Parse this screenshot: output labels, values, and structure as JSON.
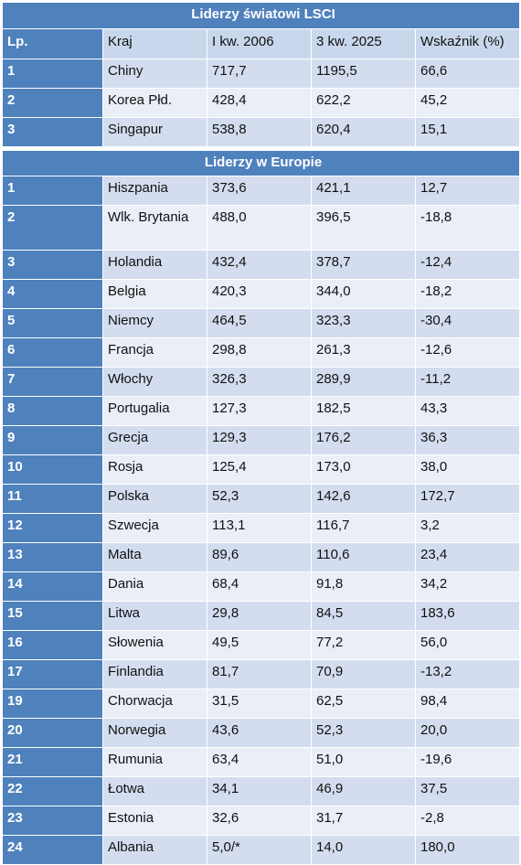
{
  "world": {
    "title": "Liderzy światowi LSCI",
    "headers": [
      "Lp.",
      "Kraj",
      "I kw. 2006",
      "3 kw. 2025",
      "Wskaźnik (%)"
    ],
    "rows": [
      [
        "1",
        "Chiny",
        "717,7",
        "1195,5",
        "66,6"
      ],
      [
        "2",
        "Korea Płd.",
        "428,4",
        "622,2",
        "45,2"
      ],
      [
        "3",
        "Singapur",
        "538,8",
        "620,4",
        "15,1"
      ]
    ]
  },
  "europe": {
    "title": "Liderzy w Europie",
    "rows": [
      [
        "1",
        "Hiszpania",
        "373,6",
        "421,1",
        "12,7"
      ],
      [
        "2",
        "Wlk. Brytania",
        "488,0",
        "396,5",
        "-18,8"
      ],
      [
        "3",
        "Holandia",
        "432,4",
        "378,7",
        "-12,4"
      ],
      [
        "4",
        "Belgia",
        "420,3",
        "344,0",
        "-18,2"
      ],
      [
        "5",
        "Niemcy",
        "464,5",
        "323,3",
        "-30,4"
      ],
      [
        "6",
        "Francja",
        "298,8",
        "261,3",
        "-12,6"
      ],
      [
        "7",
        "Włochy",
        "326,3",
        "289,9",
        "-11,2"
      ],
      [
        "8",
        "Portugalia",
        "127,3",
        "182,5",
        "43,3"
      ],
      [
        "9",
        "Grecja",
        "129,3",
        "176,2",
        "36,3"
      ],
      [
        "10",
        "Rosja",
        "125,4",
        "173,0",
        "38,0"
      ],
      [
        "11",
        "Polska",
        "52,3",
        "142,6",
        "172,7"
      ],
      [
        "12",
        "Szwecja",
        "113,1",
        "116,7",
        "3,2"
      ],
      [
        "13",
        "Malta",
        "89,6",
        "110,6",
        "23,4"
      ],
      [
        "14",
        "Dania",
        "68,4",
        "91,8",
        "34,2"
      ],
      [
        "15",
        "Litwa",
        "29,8",
        "84,5",
        "183,6"
      ],
      [
        "16",
        "Słowenia",
        "49,5",
        "77,2",
        "56,0"
      ],
      [
        "17",
        "Finlandia",
        "81,7",
        "70,9",
        "-13,2"
      ],
      [
        "19",
        "Chorwacja",
        "31,5",
        "62,5",
        "98,4"
      ],
      [
        "20",
        "Norwegia",
        "43,6",
        "52,3",
        "20,0"
      ],
      [
        "21",
        "Rumunia",
        "63,4",
        "51,0",
        "-19,6"
      ],
      [
        "22",
        "Łotwa",
        "34,1",
        "46,9",
        "37,5"
      ],
      [
        "23",
        "Estonia",
        "32,6",
        "31,7",
        "-2,8"
      ],
      [
        "24",
        "Albania",
        "5,0/*",
        "14,0",
        "180,0"
      ]
    ]
  },
  "colors": {
    "header_blue": "#4f81bd",
    "row_dark": "#d3ddef",
    "row_light": "#e9eef7",
    "header_light": "#c9d7ec"
  }
}
